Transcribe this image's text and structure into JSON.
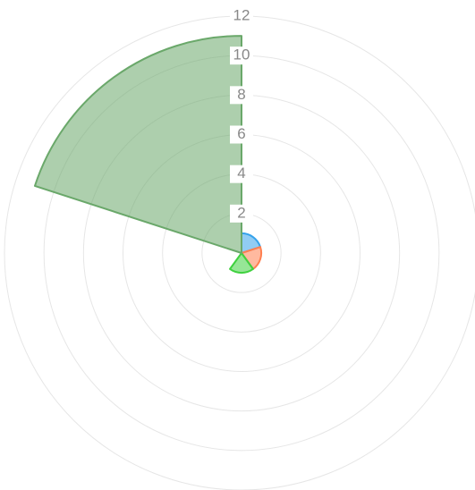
{
  "chart_data": {
    "type": "polarArea",
    "values": [
      1,
      1,
      1,
      0,
      11
    ],
    "colors": [
      "#36a2eb",
      "#ff7f50",
      "#3fd13f",
      "#9966ff",
      "#6aa86a"
    ],
    "ylim": [
      0,
      12
    ],
    "yticks": [
      2,
      4,
      6,
      8,
      10,
      12
    ],
    "grid": true
  }
}
